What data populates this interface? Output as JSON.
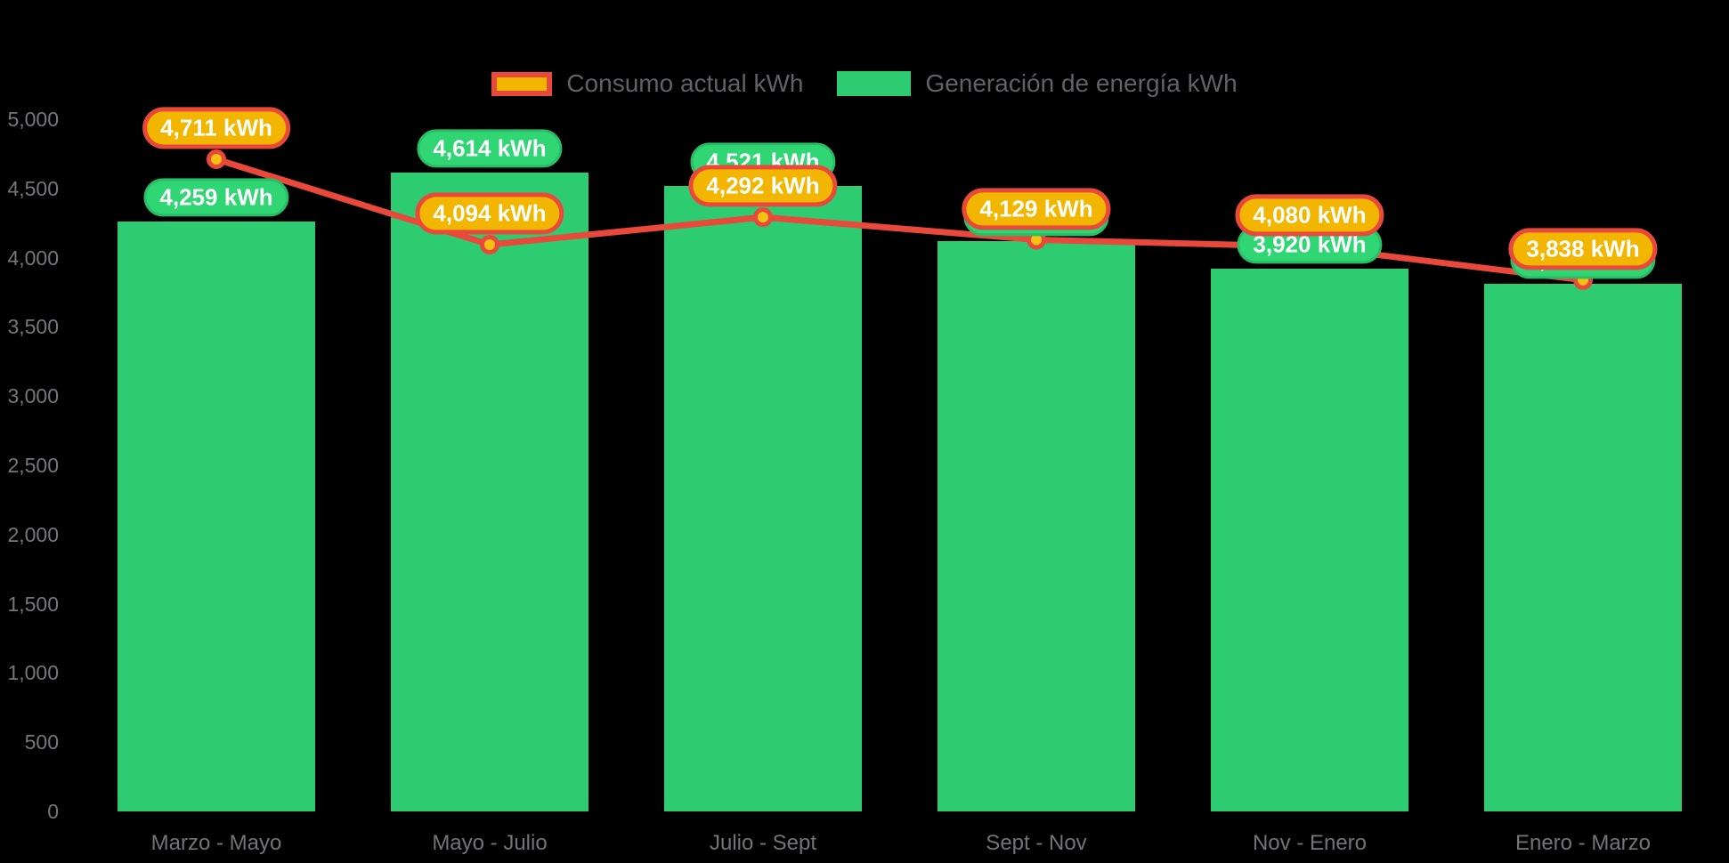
{
  "page": {
    "background": "#000000"
  },
  "chart_data": {
    "type": "combo-bar-line",
    "categories": [
      "Marzo - Mayo",
      "Mayo - Julio",
      "Julio - Sept",
      "Sept - Nov",
      "Nov - Enero",
      "Enero - Marzo"
    ],
    "series": [
      {
        "name": "Consumo actual kWh",
        "type": "line",
        "values": [
          4711,
          4094,
          4292,
          4129,
          4080,
          3838
        ],
        "point_labels": [
          "4,711 kWh",
          "4,094 kWh",
          "4,292 kWh",
          "4,129 kWh",
          "4,080 kWh",
          "3,838 kWh"
        ],
        "color": "#E8493B",
        "marker_fill": "#F5C211",
        "label_bg": "#F2B600",
        "label_border": "#E8493B"
      },
      {
        "name": "Generación de energía kWh",
        "type": "bar",
        "values": [
          4259,
          4614,
          4521,
          4120,
          3920,
          3810
        ],
        "point_labels": [
          "4,259 kWh",
          "4,614 kWh",
          "4,521 kWh",
          "4,120 kWh",
          "3,920 kWh",
          "3,810 kWh"
        ],
        "hidden_label_indexes": [
          3,
          5
        ],
        "values_estimated_from_bar_height_indexes": [
          3,
          5
        ],
        "color": "#2ECC71",
        "label_bg": "#2FD673",
        "label_border": "#29BD66"
      }
    ],
    "y_ticks": [
      "5,000",
      "4,500",
      "4,000",
      "3,500",
      "3,000",
      "2,500",
      "2,000",
      "1,500",
      "1,000",
      "500",
      "0"
    ],
    "ylim": [
      0,
      5000
    ],
    "y_tick_step": 500,
    "grid": false,
    "legend_position": "top",
    "background": "#000000",
    "axis_text_color": "#76777A"
  }
}
